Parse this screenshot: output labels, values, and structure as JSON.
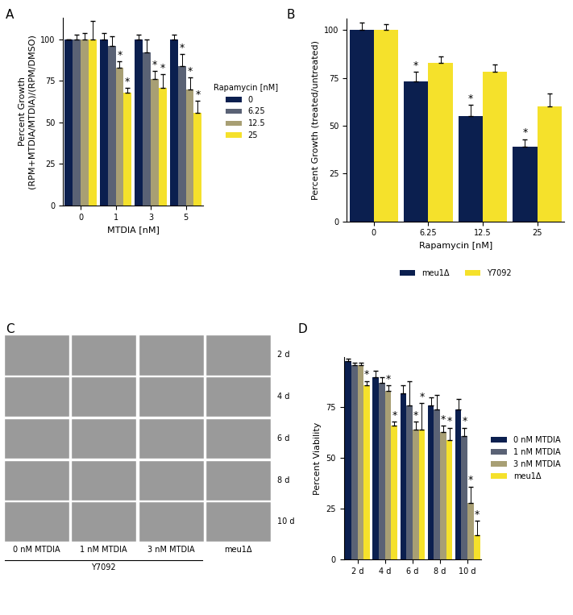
{
  "chart_data": [
    {
      "type": "bar",
      "panel_label": "A",
      "x_label": "MTDIA [nM]",
      "y_label": "Percent Growth\n(RPM+MTDIA/MTDIA)/(RPM/DMSO)",
      "categories": [
        "0",
        "1",
        "3",
        "5"
      ],
      "legend_title": "Rapamycin [nM]",
      "legend": "right",
      "significance_label": "*",
      "ylim": [
        0,
        113
      ],
      "yticks": [
        0,
        25,
        50,
        75,
        100
      ],
      "series": [
        {
          "name": "0",
          "color": "#0b1f4f",
          "values": [
            100,
            100,
            100,
            100
          ],
          "errors": [
            0,
            4,
            3,
            3
          ],
          "significant": [
            false,
            false,
            false,
            false
          ]
        },
        {
          "name": "6.25",
          "color": "#5a6275",
          "values": [
            100,
            96,
            92,
            84
          ],
          "errors": [
            3,
            6,
            8,
            7
          ],
          "significant": [
            false,
            false,
            false,
            true
          ]
        },
        {
          "name": "12.5",
          "color": "#a89f74",
          "values": [
            100,
            83,
            76,
            70
          ],
          "errors": [
            4,
            4,
            5,
            7
          ],
          "significant": [
            false,
            true,
            true,
            true
          ]
        },
        {
          "name": "25",
          "color": "#f5e12b",
          "values": [
            100,
            68,
            71,
            56
          ],
          "errors": [
            11,
            3,
            8,
            7
          ],
          "significant": [
            false,
            true,
            true,
            true
          ]
        }
      ]
    },
    {
      "type": "bar",
      "panel_label": "B",
      "x_label": "Rapamycin [nM]",
      "y_label": "Percent Growth (treated/untreated)",
      "categories": [
        "0",
        "6.25",
        "12.5",
        "25"
      ],
      "legend": "bottom",
      "significance_label": "*",
      "ylim": [
        0,
        106
      ],
      "yticks": [
        0,
        25,
        50,
        75,
        100
      ],
      "series": [
        {
          "name": "meu1Δ",
          "color": "#0b1f4f",
          "values": [
            100,
            73,
            55,
            39
          ],
          "errors": [
            4,
            5,
            6,
            4
          ],
          "significant": [
            false,
            true,
            true,
            true
          ]
        },
        {
          "name": "Y7092",
          "color": "#f5e12b",
          "values": [
            100,
            83,
            78,
            60
          ],
          "errors": [
            3,
            3,
            4,
            7
          ],
          "significant": [
            false,
            false,
            false,
            false
          ]
        }
      ]
    },
    {
      "type": "image_grid",
      "panel_label": "C",
      "rows": [
        "2 d",
        "4 d",
        "6 d",
        "8 d",
        "10 d"
      ],
      "columns": [
        "0 nM MTDIA",
        "1 nM MTDIA",
        "3 nM MTDIA",
        "meu1Δ"
      ],
      "group": {
        "label": "Y7092",
        "columns": [
          "0 nM MTDIA",
          "1 nM MTDIA",
          "3 nM MTDIA"
        ]
      }
    },
    {
      "type": "bar",
      "panel_label": "D",
      "y_label": "Percent Viability",
      "categories": [
        "2 d",
        "4 d",
        "6 d",
        "8 d",
        "10 d"
      ],
      "legend": "right",
      "significance_label": "*",
      "ylim": [
        0,
        100
      ],
      "yticks": [
        0,
        25,
        50,
        75
      ],
      "series": [
        {
          "name": "0 nM MTDIA",
          "color": "#0b1f4f",
          "values": [
            98,
            90,
            82,
            76,
            74
          ],
          "errors": [
            1,
            3,
            4,
            4,
            5
          ],
          "significant": [
            false,
            false,
            false,
            false,
            false
          ]
        },
        {
          "name": "1 nM MTDIA",
          "color": "#5a6275",
          "values": [
            96,
            87,
            76,
            74,
            61
          ],
          "errors": [
            1,
            3,
            12,
            7,
            4
          ],
          "significant": [
            false,
            false,
            false,
            false,
            true
          ]
        },
        {
          "name": "3 nM MTDIA",
          "color": "#a89f74",
          "values": [
            96,
            83,
            64,
            63,
            28
          ],
          "errors": [
            1,
            3,
            4,
            3,
            8
          ],
          "significant": [
            false,
            true,
            true,
            true,
            true
          ]
        },
        {
          "name": "meu1Δ",
          "color": "#f5e12b",
          "values": [
            86,
            66,
            64,
            59,
            12
          ],
          "errors": [
            2,
            2,
            13,
            6,
            7
          ],
          "significant": [
            true,
            true,
            true,
            true,
            true
          ]
        }
      ]
    }
  ]
}
